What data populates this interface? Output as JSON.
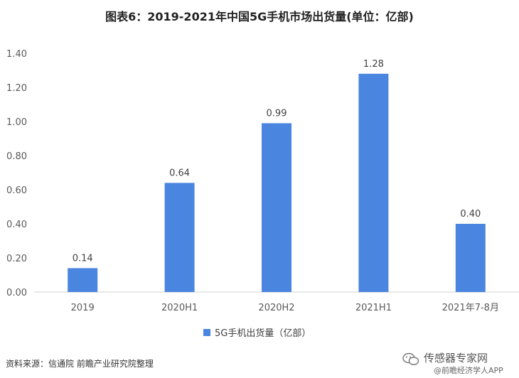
{
  "chart_data": {
    "type": "bar",
    "title": "图表6：2019-2021年中国5G手机市场出货量(单位：亿部)",
    "categories": [
      "2019",
      "2020H1",
      "2020H2",
      "2021H1",
      "2021年7-8月"
    ],
    "series": [
      {
        "name": "5G手机出货量（亿部）",
        "values": [
          0.14,
          0.64,
          0.99,
          1.28,
          0.4
        ],
        "color": "#4A86E0"
      }
    ],
    "data_labels": [
      "0.14",
      "0.64",
      "0.99",
      "1.28",
      "0.40"
    ],
    "yticks": [
      "0.00",
      "0.20",
      "0.40",
      "0.60",
      "0.80",
      "1.00",
      "1.20",
      "1.40"
    ],
    "ylim": [
      0,
      1.4
    ],
    "legend_position": "bottom"
  },
  "footer": {
    "source": "资料来源：信通院 前瞻产业研究院整理",
    "watermark_brand": "传感器专家网",
    "watermark_app": "@前瞻经济学人APP"
  }
}
